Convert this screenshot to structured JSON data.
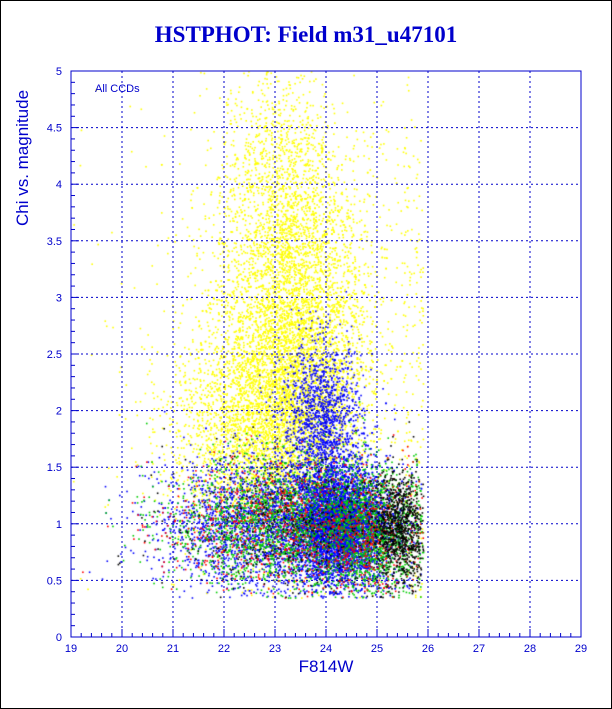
{
  "chart_data": {
    "type": "scatter",
    "title": "HSTPHOT: Field m31_u47101",
    "xlabel": "F814W",
    "ylabel": "Chi vs. magnitude",
    "annotation": "All CCDs",
    "xlim": [
      19,
      29
    ],
    "ylim": [
      0,
      5
    ],
    "x_ticks": [
      "19",
      "20",
      "21",
      "22",
      "23",
      "24",
      "25",
      "26",
      "27",
      "28",
      "29"
    ],
    "y_ticks": [
      "0",
      "0.5",
      "1",
      "1.5",
      "2",
      "2.5",
      "3",
      "3.5",
      "4",
      "4.5",
      "5"
    ],
    "grid": true,
    "series": [
      {
        "color": "#ffff00",
        "clusters": [
          {
            "x_center": 23.3,
            "x_spread": 0.75,
            "y_center": 2.6,
            "y_spread": 0.75,
            "fraction": 0.55
          },
          {
            "x_center": 22.7,
            "x_spread": 0.9,
            "y_center": 1.85,
            "y_spread": 0.45,
            "fraction": 0.25
          },
          {
            "x_center": 23.1,
            "x_spread": 0.6,
            "y_center": 4.0,
            "y_spread": 0.55,
            "fraction": 0.12
          },
          {
            "x_center": 24.0,
            "x_spread": 2.0,
            "y_center": 2.6,
            "y_spread": 1.4,
            "fraction": 0.08
          }
        ]
      },
      {
        "color": "#0000ff",
        "clusters": [
          {
            "x_center": 24.3,
            "x_spread": 0.45,
            "y_center": 1.0,
            "y_spread": 0.25,
            "fraction": 0.55
          },
          {
            "x_center": 23.0,
            "x_spread": 1.1,
            "y_center": 1.0,
            "y_spread": 0.28,
            "fraction": 0.3
          },
          {
            "x_center": 23.9,
            "x_spread": 0.4,
            "y_center": 1.9,
            "y_spread": 0.35,
            "fraction": 0.15
          }
        ]
      },
      {
        "color": "#00cc00",
        "clusters": [
          {
            "x_center": 23.3,
            "x_spread": 1.2,
            "y_center": 1.0,
            "y_spread": 0.28,
            "fraction": 0.7
          },
          {
            "x_center": 24.9,
            "x_spread": 0.45,
            "y_center": 0.95,
            "y_spread": 0.3,
            "fraction": 0.3
          }
        ]
      },
      {
        "color": "#ff0000",
        "clusters": [
          {
            "x_center": 23.2,
            "x_spread": 1.2,
            "y_center": 1.0,
            "y_spread": 0.28,
            "fraction": 0.75
          },
          {
            "x_center": 24.8,
            "x_spread": 0.5,
            "y_center": 0.9,
            "y_spread": 0.3,
            "fraction": 0.25
          }
        ]
      },
      {
        "color": "#000000",
        "clusters": [
          {
            "x_center": 25.4,
            "x_spread": 0.25,
            "y_center": 0.95,
            "y_spread": 0.25,
            "fraction": 0.6
          },
          {
            "x_center": 23.5,
            "x_spread": 1.3,
            "y_center": 1.0,
            "y_spread": 0.3,
            "fraction": 0.4
          }
        ]
      }
    ],
    "colors": {
      "title": "#0000cc",
      "axes": "#0000cc",
      "grid": "#0000cc",
      "annotation": "#0000cc"
    }
  }
}
